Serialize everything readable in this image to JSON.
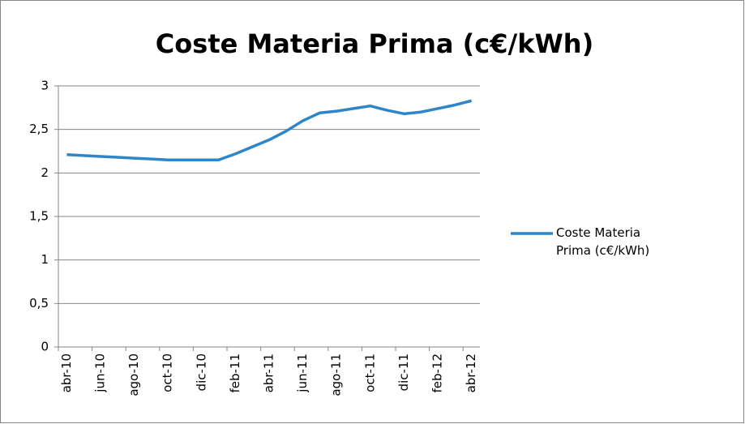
{
  "chart_data": {
    "type": "line",
    "title": "Coste Materia Prima (c€/kWh)",
    "categories": [
      "abr-10",
      null,
      "jun-10",
      null,
      "ago-10",
      null,
      "oct-10",
      null,
      "dic-10",
      null,
      "feb-11",
      null,
      "abr-11",
      null,
      "jun-11",
      null,
      "ago-11",
      null,
      "oct-11",
      null,
      "dic-11",
      null,
      "feb-12",
      null,
      "abr-12"
    ],
    "series": [
      {
        "name": "Coste Materia Prima (c€/kWh)",
        "color": "#2e86c8",
        "values": [
          2.21,
          2.2,
          2.19,
          2.18,
          2.17,
          2.16,
          2.15,
          2.15,
          2.15,
          2.15,
          2.22,
          2.3,
          2.38,
          2.48,
          2.6,
          2.69,
          2.71,
          2.74,
          2.77,
          2.72,
          2.68,
          2.7,
          2.74,
          2.78,
          2.83
        ]
      }
    ],
    "ylim": [
      0,
      3
    ],
    "yticks": [
      0,
      {
        "value": 0.5,
        "label": "0,5"
      },
      1,
      {
        "value": 1.5,
        "label": "1,5"
      },
      2,
      {
        "value": 2.5,
        "label": "2,5"
      },
      3
    ],
    "grid": true,
    "legend": "right"
  }
}
